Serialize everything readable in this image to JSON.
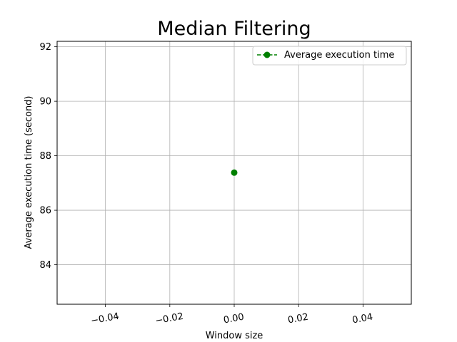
{
  "chart_data": {
    "type": "line",
    "title": "Median Filtering",
    "xlabel": "Window size",
    "ylabel": "Average execution time (second)",
    "xlim": [
      -0.055,
      0.055
    ],
    "ylim": [
      82.55,
      92.2
    ],
    "xticks": [
      -0.04,
      -0.02,
      0.0,
      0.02,
      0.04
    ],
    "xtick_labels": [
      "−0.04",
      "−0.02",
      "0.00",
      "0.02",
      "0.04"
    ],
    "yticks": [
      84,
      86,
      88,
      90,
      92
    ],
    "ytick_labels": [
      "84",
      "86",
      "88",
      "90",
      "92"
    ],
    "grid": true,
    "legend_position": "top-right",
    "series": [
      {
        "name": "Average execution time",
        "color": "#008000",
        "line_style": "dashed",
        "marker": "circle",
        "x": [
          0.0
        ],
        "y": [
          87.38
        ]
      }
    ]
  }
}
